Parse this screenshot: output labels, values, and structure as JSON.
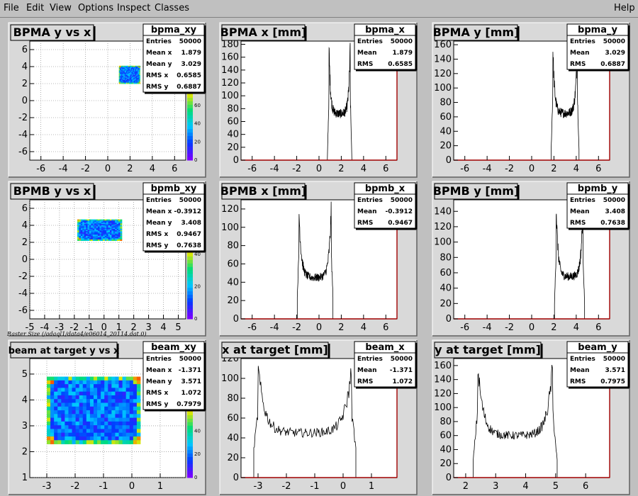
{
  "menu": {
    "items": [
      {
        "label": "File"
      },
      {
        "label": "Edit"
      },
      {
        "label": "View"
      },
      {
        "label": "Options"
      },
      {
        "label": "Inspect"
      },
      {
        "label": "Classes"
      }
    ],
    "help": "Help"
  },
  "raster_label": "Raster Size (/adaql1/data4/e06014_20114.dat.0)",
  "colors": {
    "background": "#c0c0c0",
    "frame": "#d9d9d9",
    "axis_red": "#a00000",
    "histogram": "#000000"
  },
  "chart_data": [
    {
      "type": "heatmap",
      "title": "BPMA y vs x",
      "xlim": [
        -7,
        7
      ],
      "ylim": [
        -7,
        7
      ],
      "xticks": [
        -6,
        -4,
        -2,
        0,
        2,
        4,
        6
      ],
      "yticks": [
        -6,
        -4,
        -2,
        0,
        2,
        4,
        6
      ],
      "zticks": [
        0,
        20,
        40,
        60,
        80
      ],
      "beam": {
        "x": [
          1.0,
          2.9
        ],
        "y": [
          2.0,
          4.1
        ]
      },
      "stats": {
        "name": "bpma_xy",
        "rows": [
          [
            "Entries",
            "50000"
          ],
          [
            "Mean x",
            "1.879"
          ],
          [
            "Mean y",
            "3.029"
          ],
          [
            "RMS x",
            "0.6585"
          ],
          [
            "RMS y",
            "0.6887"
          ]
        ]
      }
    },
    {
      "type": "bar",
      "title": "BPMA x [mm]",
      "xlim": [
        -7,
        7
      ],
      "ylim": [
        0,
        185
      ],
      "xticks": [
        -6,
        -4,
        -2,
        0,
        2,
        4,
        6
      ],
      "yticks": [
        0,
        20,
        40,
        60,
        80,
        100,
        120,
        140,
        160,
        180
      ],
      "profile": {
        "x0": 0.9,
        "x1": 2.8,
        "edge_peak": 175,
        "center": 72
      },
      "stats": {
        "name": "bpma_x",
        "rows": [
          [
            "Entries",
            "50000"
          ],
          [
            "Mean",
            "1.879"
          ],
          [
            "RMS",
            "0.6585"
          ]
        ]
      }
    },
    {
      "type": "bar",
      "title": "BPMA y [mm]",
      "xlim": [
        -7,
        7
      ],
      "ylim": [
        0,
        165
      ],
      "xticks": [
        -6,
        -4,
        -2,
        0,
        2,
        4,
        6
      ],
      "yticks": [
        0,
        20,
        40,
        60,
        80,
        100,
        120,
        140,
        160
      ],
      "profile": {
        "x0": 1.9,
        "x1": 4.1,
        "edge_peak": 158,
        "center": 65
      },
      "stats": {
        "name": "bpma_y",
        "rows": [
          [
            "Entries",
            "50000"
          ],
          [
            "Mean",
            "3.029"
          ],
          [
            "RMS",
            "0.6887"
          ]
        ]
      }
    },
    {
      "type": "heatmap",
      "title": "BPMB y vs x",
      "xlim": [
        -5,
        5.5
      ],
      "ylim": [
        -7,
        7
      ],
      "xticks": [
        -5,
        -4,
        -3,
        -2,
        -1,
        0,
        1,
        2,
        3,
        4,
        5
      ],
      "yticks": [
        -6,
        -4,
        -2,
        0,
        2,
        4,
        6
      ],
      "zticks": [
        0,
        20,
        40
      ],
      "beam": {
        "x": [
          -1.8,
          1.2
        ],
        "y": [
          2.2,
          4.7
        ]
      },
      "stats": {
        "name": "bpmb_xy",
        "rows": [
          [
            "Entries",
            "50000"
          ],
          [
            "Mean x",
            "-0.3912"
          ],
          [
            "Mean y",
            "3.408"
          ],
          [
            "RMS x",
            "0.9467"
          ],
          [
            "RMS y",
            "0.7638"
          ]
        ]
      }
    },
    {
      "type": "bar",
      "title": "BPMB x [mm]",
      "xlim": [
        -7,
        7
      ],
      "ylim": [
        0,
        130
      ],
      "xticks": [
        -6,
        -4,
        -2,
        0,
        2,
        4,
        6
      ],
      "yticks": [
        0,
        20,
        40,
        60,
        80,
        100,
        120
      ],
      "profile": {
        "x0": -1.8,
        "x1": 1.1,
        "edge_peak": 120,
        "center": 45
      },
      "stats": {
        "name": "bpmb_x",
        "rows": [
          [
            "Entries",
            "50000"
          ],
          [
            "Mean",
            "-0.3912"
          ],
          [
            "RMS",
            "0.9467"
          ]
        ]
      }
    },
    {
      "type": "bar",
      "title": "BPMB y [mm]",
      "xlim": [
        -7,
        7
      ],
      "ylim": [
        0,
        155
      ],
      "xticks": [
        -6,
        -4,
        -2,
        0,
        2,
        4,
        6
      ],
      "yticks": [
        0,
        20,
        40,
        60,
        80,
        100,
        120,
        140
      ],
      "profile": {
        "x0": 2.2,
        "x1": 4.6,
        "edge_peak": 148,
        "center": 55
      },
      "stats": {
        "name": "bpmb_y",
        "rows": [
          [
            "Entries",
            "50000"
          ],
          [
            "Mean",
            "3.408"
          ],
          [
            "RMS",
            "0.7638"
          ]
        ]
      }
    },
    {
      "type": "heatmap",
      "title": "beam at target y vs x",
      "xlim": [
        -3.6,
        1.9
      ],
      "ylim": [
        1,
        5.6
      ],
      "xticks": [
        -3,
        -2,
        -1,
        0,
        1
      ],
      "yticks": [
        1,
        2,
        3,
        4,
        5
      ],
      "zticks": [
        0,
        20,
        40,
        60
      ],
      "beam": {
        "x": [
          -3.0,
          0.3
        ],
        "y": [
          2.3,
          4.9
        ]
      },
      "stats": {
        "name": "beam_xy",
        "rows": [
          [
            "Entries",
            "50000"
          ],
          [
            "Mean x",
            "-1.371"
          ],
          [
            "Mean y",
            "3.571"
          ],
          [
            "RMS x",
            "1.072"
          ],
          [
            "RMS y",
            "0.7979"
          ]
        ]
      }
    },
    {
      "type": "bar",
      "title": "x at target [mm]",
      "xlim": [
        -3.6,
        1.9
      ],
      "ylim": [
        0,
        120
      ],
      "xticks": [
        -3,
        -2,
        -1,
        0,
        1
      ],
      "yticks": [
        0,
        20,
        40,
        60,
        80,
        100,
        120
      ],
      "profile": {
        "x0": -3.0,
        "x1": 0.3,
        "edge_peak": 110,
        "center": 45
      },
      "stats": {
        "name": "beam_x",
        "rows": [
          [
            "Entries",
            "50000"
          ],
          [
            "Mean",
            "-1.371"
          ],
          [
            "RMS",
            "1.072"
          ]
        ]
      }
    },
    {
      "type": "bar",
      "title": "y at target [mm]",
      "xlim": [
        1.6,
        6.8
      ],
      "ylim": [
        0,
        170
      ],
      "xticks": [
        2,
        3,
        4,
        5,
        6
      ],
      "yticks": [
        0,
        20,
        40,
        60,
        80,
        100,
        120,
        140,
        160
      ],
      "profile": {
        "x0": 2.4,
        "x1": 4.9,
        "edge_peak": 160,
        "center": 60
      },
      "stats": {
        "name": "beam_y",
        "rows": [
          [
            "Entries",
            "50000"
          ],
          [
            "Mean",
            "3.571"
          ],
          [
            "RMS",
            "0.7975"
          ]
        ]
      }
    }
  ]
}
